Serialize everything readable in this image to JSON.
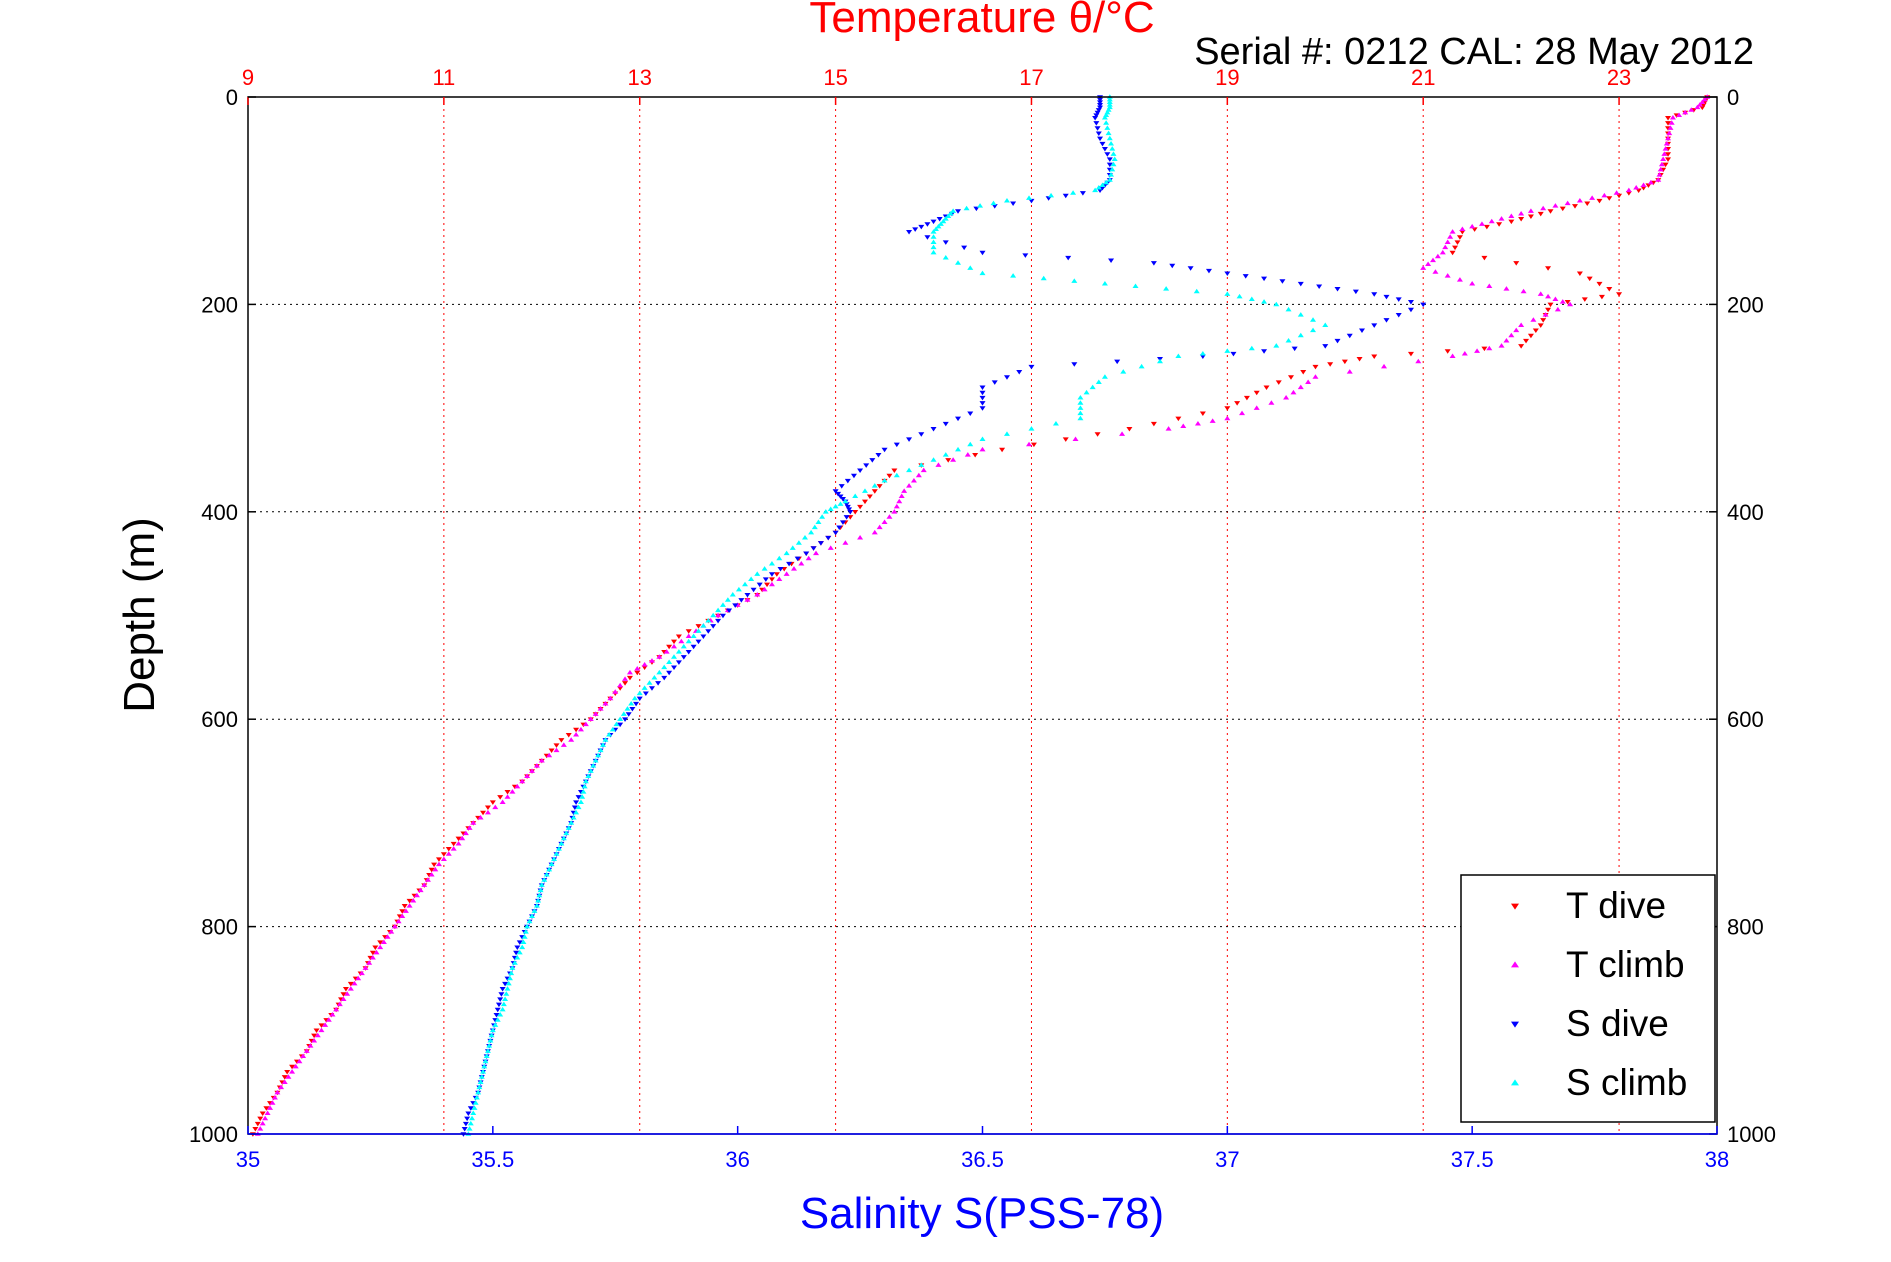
{
  "header": {
    "serial_text": "Serial #: 0212  CAL: 28 May 2012"
  },
  "chart_data": {
    "type": "scatter",
    "title": "Temperature θ/°C",
    "xlabel": "Salinity S(PSS-78)",
    "ylabel": "Depth (m)",
    "top_axis": {
      "label": "Temperature θ/°C",
      "lim": [
        9,
        24
      ],
      "ticks": [
        9,
        11,
        13,
        15,
        17,
        19,
        21,
        23
      ]
    },
    "bottom_axis": {
      "label": "Salinity S(PSS-78)",
      "lim": [
        35,
        38
      ],
      "ticks": [
        35,
        35.5,
        36,
        36.5,
        37,
        37.5,
        38
      ]
    },
    "y_axis": {
      "label": "Depth (m)",
      "lim": [
        0,
        1000
      ],
      "reversed": true,
      "ticks": [
        0,
        200,
        400,
        600,
        800,
        1000
      ]
    },
    "grid": true,
    "legend_position": "bottom-right",
    "colors": {
      "temperature": "#ff0000",
      "salinity": "#0000ff",
      "depth": "#000000"
    },
    "series": [
      {
        "name": "T dive",
        "axis": "temperature",
        "color": "#ff0000",
        "marker": "triangle-down",
        "points": [
          [
            0,
            23.9
          ],
          [
            10,
            23.85
          ],
          [
            20,
            23.5
          ],
          [
            40,
            23.5
          ],
          [
            60,
            23.5
          ],
          [
            80,
            23.4
          ],
          [
            90,
            23.2
          ],
          [
            100,
            22.8
          ],
          [
            110,
            22.3
          ],
          [
            120,
            21.9
          ],
          [
            130,
            21.4
          ],
          [
            150,
            21.3
          ],
          [
            170,
            22.6
          ],
          [
            190,
            23.0
          ],
          [
            200,
            22.3
          ],
          [
            220,
            22.2
          ],
          [
            240,
            22.0
          ],
          [
            250,
            20.5
          ],
          [
            260,
            19.9
          ],
          [
            280,
            19.4
          ],
          [
            300,
            19.0
          ],
          [
            320,
            18.0
          ],
          [
            340,
            16.7
          ],
          [
            360,
            15.6
          ],
          [
            380,
            15.4
          ],
          [
            400,
            15.2
          ],
          [
            420,
            15.0
          ],
          [
            440,
            14.7
          ],
          [
            460,
            14.4
          ],
          [
            480,
            14.2
          ],
          [
            500,
            13.8
          ],
          [
            520,
            13.4
          ],
          [
            540,
            13.2
          ],
          [
            560,
            12.9
          ],
          [
            580,
            12.7
          ],
          [
            600,
            12.5
          ],
          [
            620,
            12.2
          ],
          [
            640,
            12.0
          ],
          [
            660,
            11.8
          ],
          [
            680,
            11.5
          ],
          [
            700,
            11.3
          ],
          [
            720,
            11.1
          ],
          [
            740,
            10.9
          ],
          [
            760,
            10.8
          ],
          [
            780,
            10.6
          ],
          [
            800,
            10.5
          ],
          [
            820,
            10.3
          ],
          [
            840,
            10.2
          ],
          [
            860,
            10.0
          ],
          [
            880,
            9.9
          ],
          [
            900,
            9.7
          ],
          [
            920,
            9.6
          ],
          [
            940,
            9.4
          ],
          [
            960,
            9.3
          ],
          [
            980,
            9.15
          ],
          [
            1000,
            9.05
          ]
        ]
      },
      {
        "name": "T climb",
        "axis": "temperature",
        "color": "#ff00ff",
        "marker": "triangle-up",
        "points": [
          [
            0,
            23.9
          ],
          [
            10,
            23.8
          ],
          [
            20,
            23.55
          ],
          [
            40,
            23.5
          ],
          [
            60,
            23.45
          ],
          [
            80,
            23.4
          ],
          [
            90,
            23.1
          ],
          [
            100,
            22.6
          ],
          [
            110,
            22.1
          ],
          [
            120,
            21.7
          ],
          [
            130,
            21.3
          ],
          [
            150,
            21.2
          ],
          [
            165,
            21.0
          ],
          [
            180,
            21.5
          ],
          [
            190,
            22.2
          ],
          [
            200,
            22.5
          ],
          [
            220,
            22.0
          ],
          [
            240,
            21.8
          ],
          [
            250,
            21.3
          ],
          [
            270,
            19.9
          ],
          [
            290,
            19.6
          ],
          [
            310,
            19.0
          ],
          [
            320,
            18.4
          ],
          [
            340,
            16.5
          ],
          [
            360,
            15.9
          ],
          [
            380,
            15.7
          ],
          [
            400,
            15.6
          ],
          [
            420,
            15.4
          ],
          [
            440,
            14.8
          ],
          [
            460,
            14.5
          ],
          [
            480,
            14.2
          ],
          [
            500,
            13.8
          ],
          [
            520,
            13.5
          ],
          [
            540,
            13.2
          ],
          [
            555,
            12.9
          ],
          [
            580,
            12.7
          ],
          [
            600,
            12.5
          ],
          [
            620,
            12.3
          ],
          [
            640,
            12.0
          ],
          [
            660,
            11.8
          ],
          [
            680,
            11.6
          ],
          [
            700,
            11.3
          ],
          [
            720,
            11.15
          ],
          [
            740,
            10.95
          ],
          [
            760,
            10.8
          ],
          [
            780,
            10.65
          ],
          [
            800,
            10.5
          ],
          [
            820,
            10.35
          ],
          [
            840,
            10.2
          ],
          [
            860,
            10.05
          ],
          [
            880,
            9.9
          ],
          [
            900,
            9.75
          ],
          [
            920,
            9.6
          ],
          [
            940,
            9.45
          ],
          [
            960,
            9.3
          ],
          [
            980,
            9.2
          ],
          [
            1000,
            9.1
          ]
        ]
      },
      {
        "name": "S dive",
        "axis": "salinity",
        "color": "#0000ff",
        "marker": "triangle-down",
        "points": [
          [
            0,
            36.74
          ],
          [
            10,
            36.74
          ],
          [
            20,
            36.73
          ],
          [
            40,
            36.74
          ],
          [
            60,
            36.76
          ],
          [
            80,
            36.76
          ],
          [
            90,
            36.74
          ],
          [
            100,
            36.6
          ],
          [
            110,
            36.45
          ],
          [
            120,
            36.4
          ],
          [
            130,
            36.35
          ],
          [
            150,
            36.5
          ],
          [
            160,
            36.85
          ],
          [
            170,
            37.0
          ],
          [
            180,
            37.15
          ],
          [
            190,
            37.3
          ],
          [
            200,
            37.4
          ],
          [
            220,
            37.3
          ],
          [
            240,
            37.2
          ],
          [
            250,
            36.95
          ],
          [
            260,
            36.6
          ],
          [
            280,
            36.5
          ],
          [
            300,
            36.5
          ],
          [
            320,
            36.4
          ],
          [
            340,
            36.3
          ],
          [
            360,
            36.25
          ],
          [
            380,
            36.2
          ],
          [
            390,
            36.22
          ],
          [
            400,
            36.23
          ],
          [
            420,
            36.2
          ],
          [
            440,
            36.14
          ],
          [
            460,
            36.07
          ],
          [
            480,
            36.02
          ],
          [
            500,
            35.97
          ],
          [
            520,
            35.93
          ],
          [
            540,
            35.89
          ],
          [
            560,
            35.85
          ],
          [
            580,
            35.8
          ],
          [
            600,
            35.77
          ],
          [
            620,
            35.73
          ],
          [
            640,
            35.71
          ],
          [
            660,
            35.69
          ],
          [
            680,
            35.67
          ],
          [
            700,
            35.66
          ],
          [
            720,
            35.64
          ],
          [
            740,
            35.62
          ],
          [
            760,
            35.6
          ],
          [
            780,
            35.59
          ],
          [
            800,
            35.57
          ],
          [
            820,
            35.55
          ],
          [
            840,
            35.54
          ],
          [
            860,
            35.52
          ],
          [
            880,
            35.51
          ],
          [
            900,
            35.5
          ],
          [
            920,
            35.49
          ],
          [
            940,
            35.48
          ],
          [
            960,
            35.47
          ],
          [
            980,
            35.45
          ],
          [
            1000,
            35.44
          ]
        ]
      },
      {
        "name": "S climb",
        "axis": "salinity",
        "color": "#00ffff",
        "marker": "triangle-up",
        "points": [
          [
            0,
            36.76
          ],
          [
            10,
            36.76
          ],
          [
            20,
            36.75
          ],
          [
            40,
            36.76
          ],
          [
            60,
            36.77
          ],
          [
            80,
            36.76
          ],
          [
            90,
            36.73
          ],
          [
            100,
            36.55
          ],
          [
            110,
            36.44
          ],
          [
            120,
            36.42
          ],
          [
            130,
            36.4
          ],
          [
            150,
            36.4
          ],
          [
            170,
            36.5
          ],
          [
            180,
            36.75
          ],
          [
            190,
            37.0
          ],
          [
            200,
            37.1
          ],
          [
            220,
            37.2
          ],
          [
            240,
            37.1
          ],
          [
            250,
            36.9
          ],
          [
            270,
            36.75
          ],
          [
            290,
            36.7
          ],
          [
            310,
            36.7
          ],
          [
            330,
            36.5
          ],
          [
            350,
            36.4
          ],
          [
            370,
            36.3
          ],
          [
            390,
            36.22
          ],
          [
            400,
            36.18
          ],
          [
            420,
            36.15
          ],
          [
            440,
            36.1
          ],
          [
            460,
            36.04
          ],
          [
            480,
            35.99
          ],
          [
            500,
            35.95
          ],
          [
            520,
            35.91
          ],
          [
            540,
            35.87
          ],
          [
            560,
            35.83
          ],
          [
            580,
            35.79
          ],
          [
            600,
            35.76
          ],
          [
            620,
            35.73
          ],
          [
            640,
            35.71
          ],
          [
            660,
            35.69
          ],
          [
            680,
            35.68
          ],
          [
            700,
            35.66
          ],
          [
            720,
            35.64
          ],
          [
            740,
            35.62
          ],
          [
            760,
            35.6
          ],
          [
            780,
            35.59
          ],
          [
            800,
            35.57
          ],
          [
            820,
            35.56
          ],
          [
            840,
            35.54
          ],
          [
            860,
            35.53
          ],
          [
            880,
            35.52
          ],
          [
            900,
            35.5
          ],
          [
            920,
            35.49
          ],
          [
            940,
            35.48
          ],
          [
            960,
            35.47
          ],
          [
            980,
            35.46
          ],
          [
            1000,
            35.45
          ]
        ]
      }
    ]
  }
}
